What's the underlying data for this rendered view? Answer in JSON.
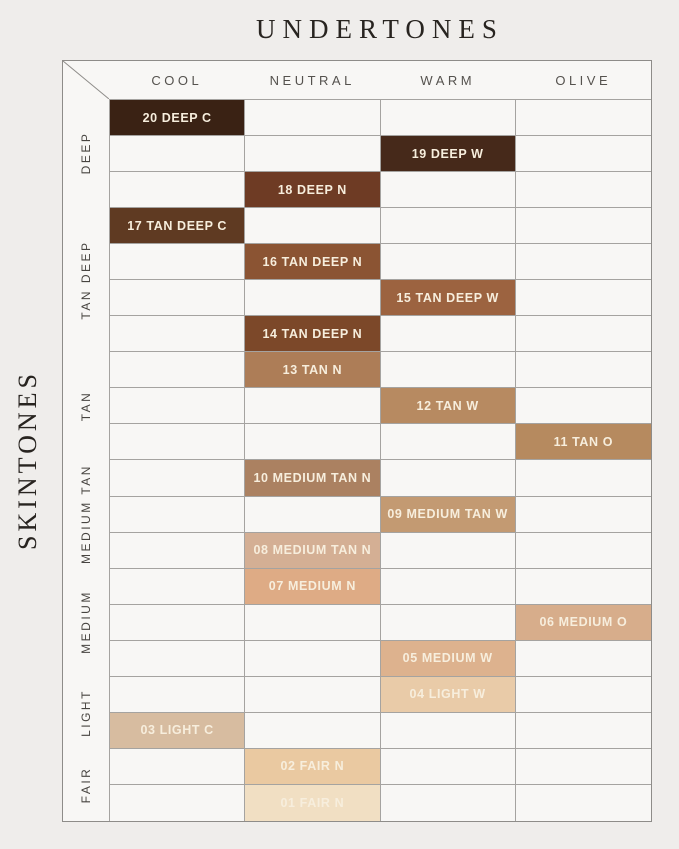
{
  "page": {
    "title": "UNDERTONES",
    "side_label": "SKINTONES"
  },
  "columns": [
    {
      "label": "COOL"
    },
    {
      "label": "NEUTRAL"
    },
    {
      "label": "WARM"
    },
    {
      "label": "OLIVE"
    }
  ],
  "groups": [
    {
      "label": "DEEP",
      "row_count": 3
    },
    {
      "label": "TAN DEEP",
      "row_count": 4
    },
    {
      "label": "TAN",
      "row_count": 3
    },
    {
      "label": "MEDIUM TAN",
      "row_count": 3
    },
    {
      "label": "MEDIUM",
      "row_count": 3
    },
    {
      "label": "LIGHT",
      "row_count": 2
    },
    {
      "label": "FAIR",
      "row_count": 2
    }
  ],
  "chart_data": {
    "type": "heatmap",
    "x_axis_title": "UNDERTONES",
    "y_axis_title": "SKINTONES",
    "x_categories": [
      "COOL",
      "NEUTRAL",
      "WARM",
      "OLIVE"
    ],
    "y_groups": [
      "DEEP",
      "TAN DEEP",
      "TAN",
      "MEDIUM TAN",
      "MEDIUM",
      "LIGHT",
      "FAIR"
    ],
    "legend_position": "none",
    "grid": true,
    "shades": [
      {
        "label": "20 DEEP C",
        "skintone": "DEEP",
        "undertone": "COOL",
        "column_index": 0,
        "swatch_color": "#3a2214"
      },
      {
        "label": "19 DEEP W",
        "skintone": "DEEP",
        "undertone": "WARM",
        "column_index": 2,
        "swatch_color": "#46291a"
      },
      {
        "label": "18 DEEP N",
        "skintone": "DEEP",
        "undertone": "NEUTRAL",
        "column_index": 1,
        "swatch_color": "#6e3b24"
      },
      {
        "label": "17 TAN DEEP C",
        "skintone": "TAN DEEP",
        "undertone": "COOL",
        "column_index": 0,
        "swatch_color": "#5f3a22"
      },
      {
        "label": "16 TAN DEEP N",
        "skintone": "TAN DEEP",
        "undertone": "NEUTRAL",
        "column_index": 1,
        "swatch_color": "#8b5433"
      },
      {
        "label": "15 TAN DEEP W",
        "skintone": "TAN DEEP",
        "undertone": "WARM",
        "column_index": 2,
        "swatch_color": "#9c6340"
      },
      {
        "label": "14 TAN DEEP N",
        "skintone": "TAN DEEP",
        "undertone": "NEUTRAL",
        "column_index": 1,
        "swatch_color": "#7c4829"
      },
      {
        "label": "13 TAN N",
        "skintone": "TAN",
        "undertone": "NEUTRAL",
        "column_index": 1,
        "swatch_color": "#ad7d57"
      },
      {
        "label": "12 TAN W",
        "skintone": "TAN",
        "undertone": "WARM",
        "column_index": 2,
        "swatch_color": "#b78a61"
      },
      {
        "label": "11 TAN O",
        "skintone": "TAN",
        "undertone": "OLIVE",
        "column_index": 3,
        "swatch_color": "#b68a5f"
      },
      {
        "label": "10 MEDIUM TAN N",
        "skintone": "MEDIUM TAN",
        "undertone": "NEUTRAL",
        "column_index": 1,
        "swatch_color": "#ab8161"
      },
      {
        "label": "09 MEDIUM TAN W",
        "skintone": "MEDIUM TAN",
        "undertone": "WARM",
        "column_index": 2,
        "swatch_color": "#c39a72"
      },
      {
        "label": "08 MEDIUM TAN N",
        "skintone": "MEDIUM TAN",
        "undertone": "NEUTRAL",
        "column_index": 1,
        "swatch_color": "#d4af94"
      },
      {
        "label": "07 MEDIUM N",
        "skintone": "MEDIUM",
        "undertone": "NEUTRAL",
        "column_index": 1,
        "swatch_color": "#deab85"
      },
      {
        "label": "06 MEDIUM O",
        "skintone": "MEDIUM",
        "undertone": "OLIVE",
        "column_index": 3,
        "swatch_color": "#d7ad8b"
      },
      {
        "label": "05 MEDIUM W",
        "skintone": "MEDIUM",
        "undertone": "WARM",
        "column_index": 2,
        "swatch_color": "#ddb28e"
      },
      {
        "label": "04 LIGHT W",
        "skintone": "LIGHT",
        "undertone": "WARM",
        "column_index": 2,
        "swatch_color": "#e9cba8"
      },
      {
        "label": "03 LIGHT C",
        "skintone": "LIGHT",
        "undertone": "COOL",
        "column_index": 0,
        "swatch_color": "#d7bca0"
      },
      {
        "label": "02 FAIR N",
        "skintone": "FAIR",
        "undertone": "NEUTRAL",
        "column_index": 1,
        "swatch_color": "#eac9a1"
      },
      {
        "label": "01 FAIR N",
        "skintone": "FAIR",
        "undertone": "NEUTRAL",
        "column_index": 1,
        "swatch_color": "#f1dfc3"
      }
    ]
  },
  "colors": {
    "page_bg": "#efedeb",
    "cell_bg": "#f8f7f5",
    "grid_line": "#a5a3a0",
    "outer_border": "#8e8c89",
    "title_text": "#282420",
    "header_text": "#55524e",
    "group_label_text": "#474440",
    "cell_label_text": "#f7eedd"
  }
}
